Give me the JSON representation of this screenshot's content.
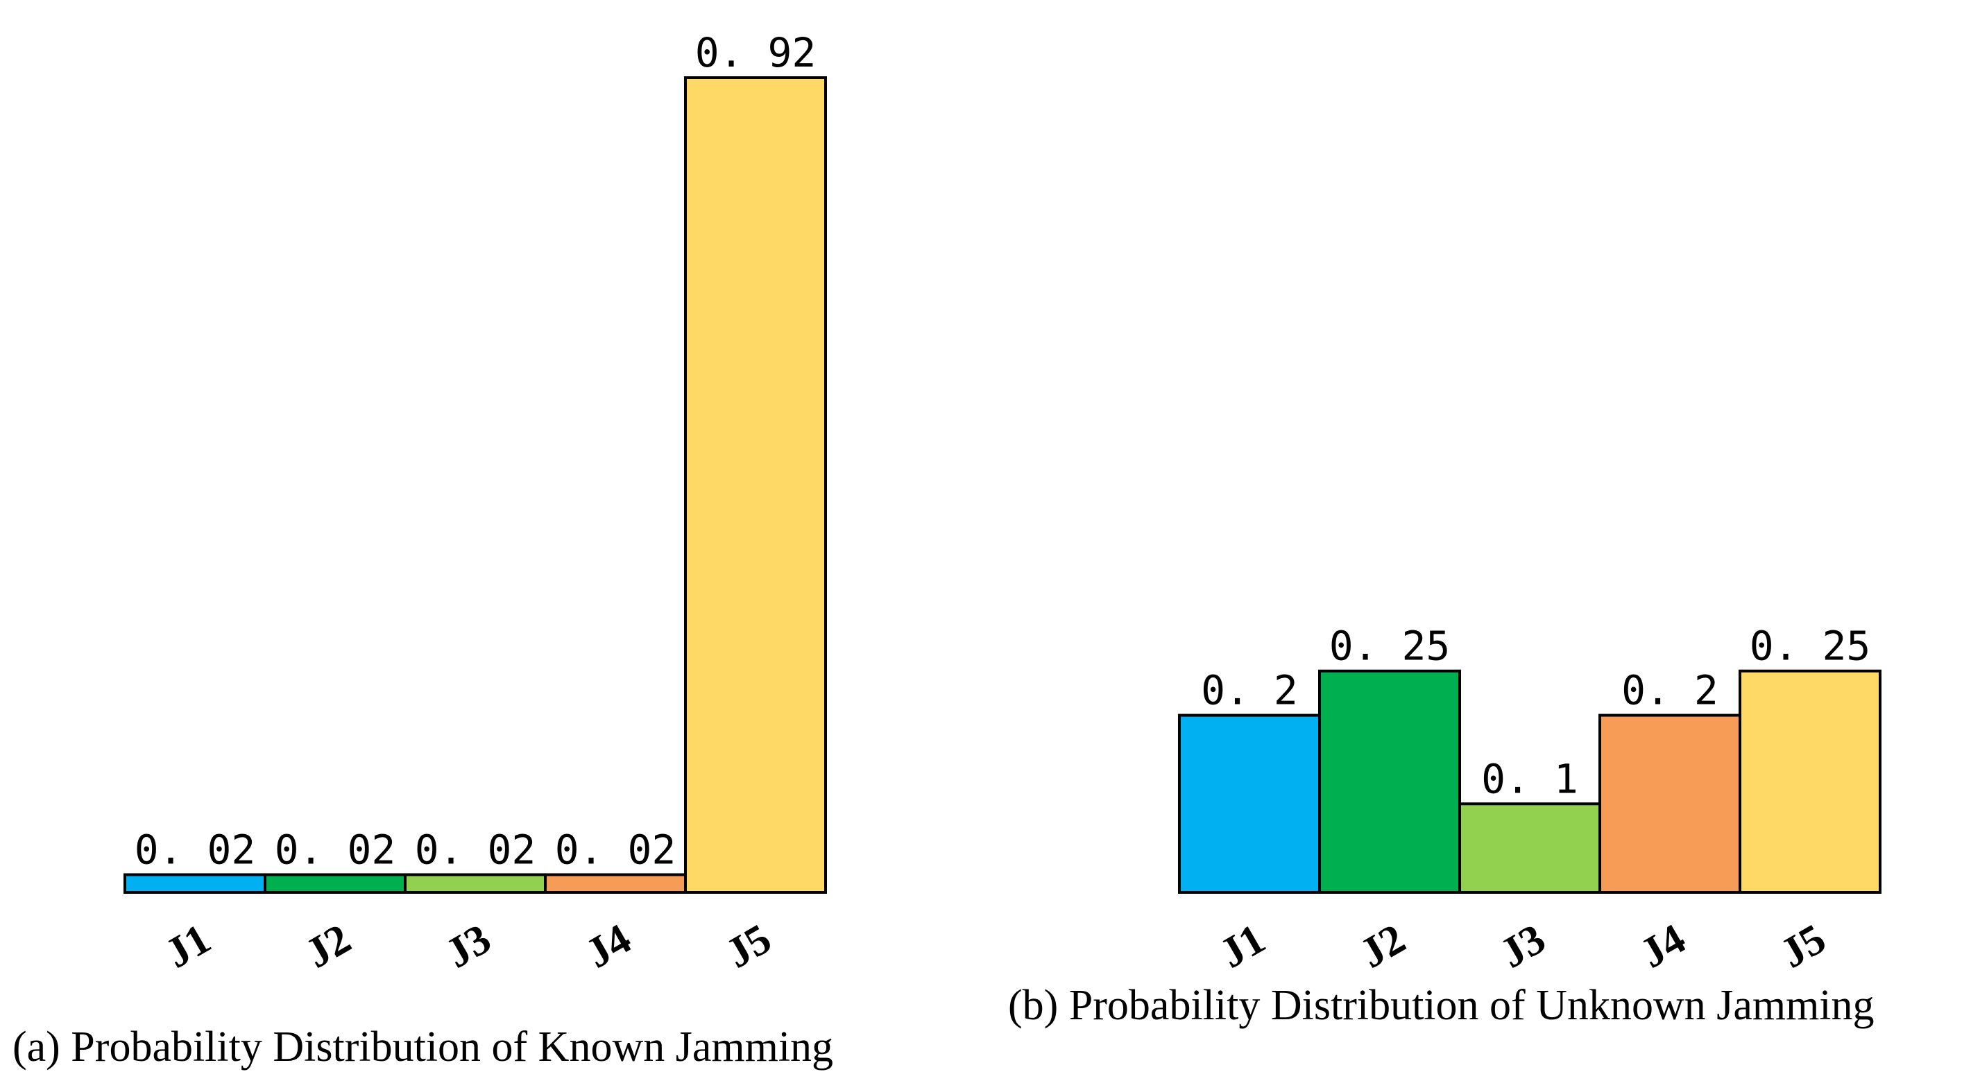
{
  "chart_data": [
    {
      "type": "bar",
      "title": "(a) Probability Distribution of Known Jamming",
      "categories": [
        "J1",
        "J2",
        "J3",
        "J4",
        "J5"
      ],
      "values": [
        0.02,
        0.02,
        0.02,
        0.02,
        0.92
      ],
      "value_labels": [
        "0. 02",
        "0. 02",
        "0. 02",
        "0. 02",
        "0. 92"
      ],
      "colors": [
        "#00B0F0",
        "#00B050",
        "#92D050",
        "#F79C57",
        "#FFD966"
      ],
      "xlabel": "",
      "ylabel": "",
      "ylim": [
        0,
        0.92
      ],
      "grid": false,
      "legend": "none"
    },
    {
      "type": "bar",
      "title": "(b) Probability Distribution of Unknown Jamming",
      "categories": [
        "J1",
        "J2",
        "J3",
        "J4",
        "J5"
      ],
      "values": [
        0.2,
        0.25,
        0.1,
        0.2,
        0.25
      ],
      "value_labels": [
        "0. 2",
        "0. 25",
        "0. 1",
        "0. 2",
        "0. 25"
      ],
      "colors": [
        "#00B0F0",
        "#00B050",
        "#92D050",
        "#F79C57",
        "#FFD966"
      ],
      "xlabel": "",
      "ylabel": "",
      "ylim": [
        0,
        0.92
      ],
      "grid": false,
      "legend": "none"
    }
  ]
}
